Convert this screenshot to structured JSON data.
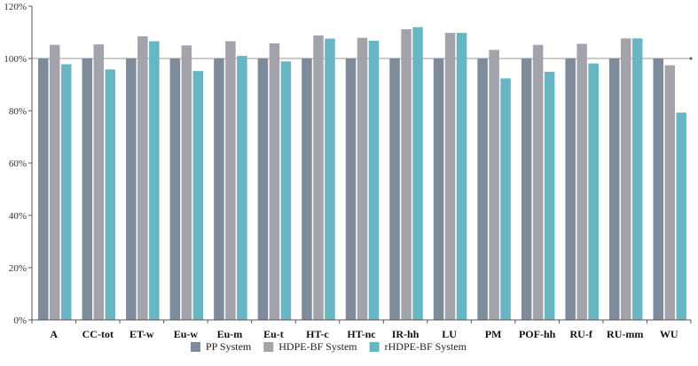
{
  "chart_data": {
    "type": "bar",
    "categories": [
      "A",
      "CC-tot",
      "ET-w",
      "Eu-w",
      "Eu-m",
      "Eu-t",
      "HT-c",
      "HT-nc",
      "IR-hh",
      "LU",
      "PM",
      "POF-hh",
      "RU-f",
      "RU-mm",
      "WU"
    ],
    "series": [
      {
        "name": "PP System",
        "color": "#7d8b9b",
        "values": [
          100,
          100,
          100,
          100,
          100,
          100,
          100,
          100,
          100,
          100,
          100,
          100,
          100,
          100,
          100
        ]
      },
      {
        "name": "HDPE-BF System",
        "color": "#a3a3ab",
        "values": [
          105.2,
          105.4,
          108.5,
          105.0,
          106.6,
          105.8,
          108.8,
          107.9,
          111.2,
          109.8,
          103.3,
          105.2,
          105.6,
          107.7,
          97.4
        ]
      },
      {
        "name": "rHDPE-BF System",
        "color": "#68b5c4",
        "values": [
          97.8,
          95.8,
          106.6,
          95.2,
          101.0,
          98.9,
          107.6,
          106.8,
          112.0,
          109.8,
          92.4,
          94.9,
          98.1,
          107.7,
          79.3
        ]
      }
    ],
    "y_ticks": [
      "0%",
      "20%",
      "40%",
      "60%",
      "80%",
      "100%",
      "120%"
    ],
    "ylim": [
      0,
      120
    ],
    "reference_line": 100,
    "grid": false,
    "legend_position": "bottom-center",
    "title": "",
    "xlabel": "",
    "ylabel": ""
  }
}
